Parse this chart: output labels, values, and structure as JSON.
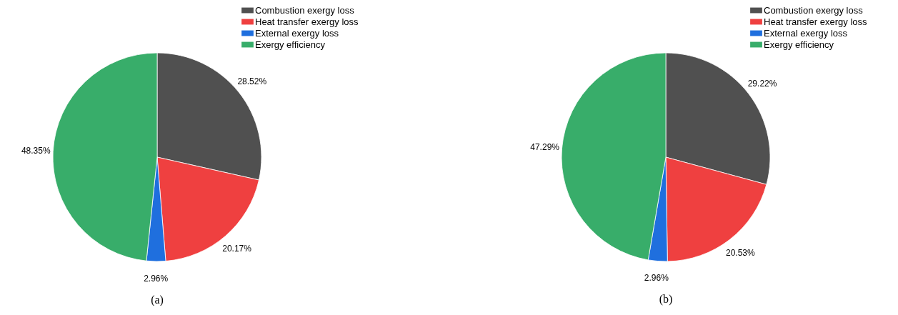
{
  "chart_data": [
    {
      "type": "pie",
      "categories": [
        "Combustion exergy loss",
        "Heat transfer exergy loss",
        "External exergy loss",
        "Exergy efficiency"
      ],
      "values": [
        28.52,
        20.17,
        2.96,
        48.35
      ],
      "value_labels": [
        "28.52%",
        "20.17%",
        "2.96%",
        "48.35%"
      ],
      "colors": [
        "#505050",
        "#ef4040",
        "#1f6fde",
        "#38ad6a"
      ],
      "legend": "top right",
      "annotations": [
        "(a)"
      ]
    },
    {
      "type": "pie",
      "categories": [
        "Combustion exergy loss",
        "Heat transfer exergy loss",
        "External exergy loss",
        "Exergy efficiency"
      ],
      "values": [
        29.22,
        20.53,
        2.96,
        47.29
      ],
      "value_labels": [
        "29.22%",
        "20.53%",
        "2.96%",
        "47.29%"
      ],
      "colors": [
        "#505050",
        "#ef4040",
        "#1f6fde",
        "#38ad6a"
      ],
      "legend": "top right",
      "annotations": [
        "(b)"
      ]
    }
  ]
}
